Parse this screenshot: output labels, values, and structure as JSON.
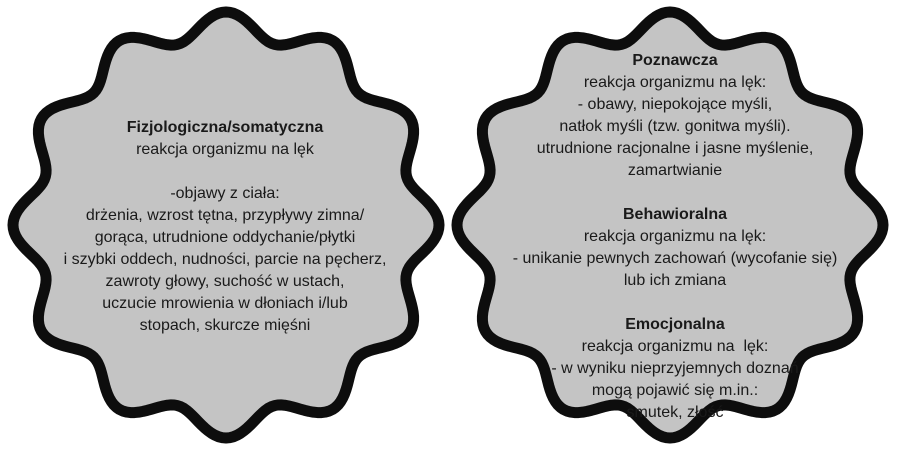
{
  "left_badge": {
    "heading": "Fizjologiczna/somatyczna",
    "subheading": "reakcja organizmu na lęk",
    "lines": [
      "-objawy z ciała:",
      "drżenia, wzrost tętna, przypływy zimna/",
      "gorąca, utrudnione oddychanie/płytki",
      "i szybki oddech, nudności, parcie na pęcherz,",
      "zawroty głowy, suchość w ustach,",
      "uczucie mrowienia w dłoniach i/lub",
      "stopach, skurcze mięśni"
    ]
  },
  "right_badge": {
    "sections": [
      {
        "heading": "Poznawcza",
        "subheading": "reakcja organizmu na lęk:",
        "lines": [
          "- obawy, niepokojące myśli,",
          "natłok myśli (tzw. gonitwa myśli).",
          "utrudnione racjonalne i jasne myślenie,",
          "zamartwianie"
        ]
      },
      {
        "heading": "Behawioralna",
        "subheading": "reakcja organizmu na lęk:",
        "lines": [
          "- unikanie pewnych zachowań (wycofanie się)",
          "lub ich zmiana"
        ]
      },
      {
        "heading": "Emocjonalna",
        "subheading": "reakcja organizmu na  lęk:",
        "lines": [
          "- w wyniku nieprzyjemnych doznań",
          "mogą pojawić się m.in.:",
          "smutek, złość"
        ]
      }
    ]
  },
  "colors": {
    "badge_fill": "#c4c4c4",
    "badge_stroke": "#0d0d0d",
    "text": "#1a1a1a"
  }
}
